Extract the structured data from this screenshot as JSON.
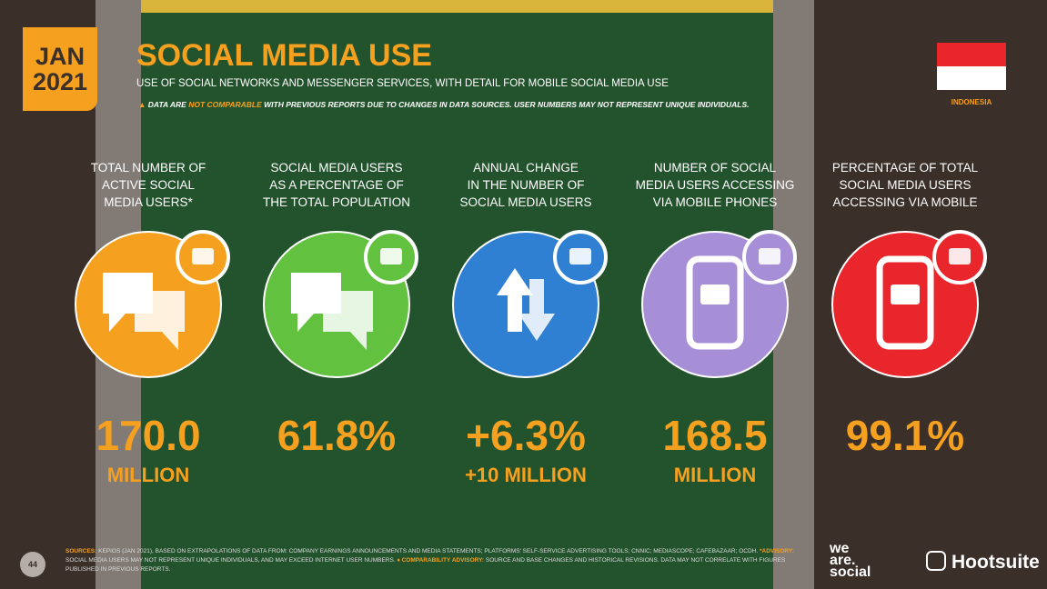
{
  "badge": {
    "month": "JAN",
    "year": "2021"
  },
  "header": {
    "title": "SOCIAL MEDIA USE",
    "subtitle": "USE OF SOCIAL NETWORKS AND MESSENGER SERVICES, WITH DETAIL FOR MOBILE SOCIAL MEDIA USE",
    "warning": [
      "DATA ARE ",
      "NOT COMPARABLE",
      " WITH PREVIOUS REPORTS DUE TO CHANGES IN DATA SOURCES. USER NUMBERS MAY NOT REPRESENT UNIQUE INDIVIDUALS."
    ],
    "country": "INDONESIA"
  },
  "stats": [
    {
      "label": [
        "TOTAL NUMBER OF",
        "ACTIVE SOCIAL",
        "MEDIA USERS*"
      ],
      "value": "170.0",
      "unit": "MILLION",
      "color": "#f5a01f"
    },
    {
      "label": [
        "SOCIAL MEDIA USERS",
        "AS A PERCENTAGE OF",
        "THE TOTAL POPULATION"
      ],
      "value": "61.8%",
      "color": "#62c13f"
    },
    {
      "label": [
        "ANNUAL CHANGE",
        "IN THE NUMBER OF",
        "SOCIAL MEDIA USERS"
      ],
      "value": "+6.3%",
      "unit": "+10 MILLION",
      "color": "#2f80d3"
    },
    {
      "label": [
        "NUMBER OF SOCIAL",
        "MEDIA USERS ACCESSING",
        "VIA MOBILE PHONES"
      ],
      "value": "168.5",
      "unit": "MILLION",
      "color": "#a68fd6"
    },
    {
      "label": [
        "PERCENTAGE OF TOTAL",
        "SOCIAL MEDIA USERS",
        "ACCESSING VIA MOBILE"
      ],
      "value": "99.1%",
      "color": "#e8262b"
    }
  ],
  "footer": {
    "page": "44",
    "sources": [
      "SOURCES:",
      " KEPIOS (JAN 2021), BASED ON EXTRAPOLATIONS OF DATA FROM: COMPANY EARNINGS ANNOUNCEMENTS AND MEDIA STATEMENTS; PLATFORMS' SELF-SERVICE ADVERTISING TOOLS; CNNIC; MEDIASCOPE; CAFEBAZAAR; OCDH. ",
      "*ADVISORY:",
      " SOCIAL MEDIA USERS MAY NOT REPRESENT UNIQUE INDIVIDUALS, AND MAY EXCEED INTERNET USER NUMBERS. ",
      "♦ COMPARABILITY ADVISORY:",
      " SOURCE AND BASE CHANGES AND HISTORICAL REVISIONS. DATA MAY NOT CORRELATE WITH FIGURES PUBLISHED IN PREVIOUS REPORTS."
    ],
    "brand1": [
      "we",
      "are.",
      "social"
    ],
    "brand2": "Hootsuite"
  }
}
